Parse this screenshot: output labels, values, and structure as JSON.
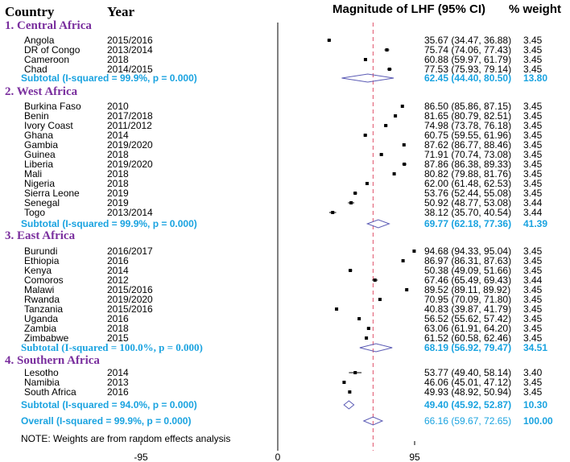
{
  "header": {
    "country": "Country",
    "year": "Year",
    "magnitude": "Magnitude of LHF (95% CI)",
    "weight": "% weight"
  },
  "note": "NOTE: Weights are from random effects analysis",
  "colors": {
    "region": "#7a2f9e",
    "subtotal": "#1aa3e0",
    "diamond": "#5b5bb5",
    "null_line": "#000000",
    "overall_line": "#e0526a"
  },
  "chart_data": {
    "type": "forest",
    "title": "Magnitude of LHF (95% CI)",
    "x_ticks": [
      -95,
      0,
      95
    ],
    "x_tick_labels": [
      "-95",
      "0",
      "95"
    ],
    "xlim": [
      -95,
      95
    ],
    "overall_line_value": 66.16,
    "rows": [
      {
        "kind": "region",
        "label": "1. Central Africa"
      },
      {
        "kind": "study",
        "country": "Angola",
        "year": "2015/2016",
        "est": 35.67,
        "lo": 34.47,
        "hi": 36.88,
        "ci_text": "35.67 (34.47, 36.88)",
        "weight": "3.45"
      },
      {
        "kind": "study",
        "country": "DR of Congo",
        "year": "2013/2014",
        "est": 75.74,
        "lo": 74.06,
        "hi": 77.43,
        "ci_text": "75.74 (74.06, 77.43)",
        "weight": "3.45"
      },
      {
        "kind": "study",
        "country": "Cameroon",
        "year": "2018",
        "est": 60.88,
        "lo": 59.97,
        "hi": 61.79,
        "ci_text": "60.88 (59.97, 61.79)",
        "weight": "3.45"
      },
      {
        "kind": "study",
        "country": "Chad",
        "year": "2014/2015",
        "est": 77.53,
        "lo": 75.93,
        "hi": 79.14,
        "ci_text": "77.53 (75.93, 79.14)",
        "weight": "3.45"
      },
      {
        "kind": "subtotal",
        "label": "Subtotal (I-squared = 99.9%, p = 0.000)",
        "font": "sans",
        "est": 62.45,
        "lo": 44.4,
        "hi": 80.5,
        "ci_text": "62.45 (44.40, 80.50)",
        "weight": "13.80"
      },
      {
        "kind": "region",
        "label": "2. West Africa"
      },
      {
        "kind": "study",
        "country": "Burkina Faso",
        "year": "2010",
        "est": 86.5,
        "lo": 85.86,
        "hi": 87.15,
        "ci_text": "86.50 (85.86, 87.15)",
        "weight": "3.45"
      },
      {
        "kind": "study",
        "country": "Benin",
        "year": "2017/2018",
        "est": 81.65,
        "lo": 80.79,
        "hi": 82.51,
        "ci_text": "81.65 (80.79, 82.51)",
        "weight": "3.45"
      },
      {
        "kind": "study",
        "country": "Ivory Coast",
        "year": "2011/2012",
        "est": 74.98,
        "lo": 73.78,
        "hi": 76.18,
        "ci_text": "74.98 (73.78, 76.18)",
        "weight": "3.45"
      },
      {
        "kind": "study",
        "country": "Ghana",
        "year": "2014",
        "est": 60.75,
        "lo": 59.55,
        "hi": 61.96,
        "ci_text": "60.75 (59.55, 61.96)",
        "weight": "3.45"
      },
      {
        "kind": "study",
        "country": "Gambia",
        "year": "2019/2020",
        "est": 87.62,
        "lo": 86.77,
        "hi": 88.46,
        "ci_text": "87.62 (86.77, 88.46)",
        "weight": "3.45"
      },
      {
        "kind": "study",
        "country": "Guinea",
        "year": "2018",
        "est": 71.91,
        "lo": 70.74,
        "hi": 73.08,
        "ci_text": "71.91 (70.74, 73.08)",
        "weight": "3.45"
      },
      {
        "kind": "study",
        "country": "Liberia",
        "year": "2019/2020",
        "est": 87.86,
        "lo": 86.38,
        "hi": 89.33,
        "ci_text": "87.86 (86.38, 89.33)",
        "weight": "3.45"
      },
      {
        "kind": "study",
        "country": "Mali",
        "year": "2018",
        "est": 80.82,
        "lo": 79.88,
        "hi": 81.76,
        "ci_text": "80.82 (79.88, 81.76)",
        "weight": "3.45"
      },
      {
        "kind": "study",
        "country": "Nigeria",
        "year": "2018",
        "est": 62.0,
        "lo": 61.48,
        "hi": 62.53,
        "ci_text": "62.00 (61.48, 62.53)",
        "weight": "3.45"
      },
      {
        "kind": "study",
        "country": "Sierra Leone",
        "year": "2019",
        "est": 53.76,
        "lo": 52.44,
        "hi": 55.08,
        "ci_text": "53.76 (52.44, 55.08)",
        "weight": "3.45"
      },
      {
        "kind": "study",
        "country": "Senegal",
        "year": "2019",
        "est": 50.92,
        "lo": 48.77,
        "hi": 53.08,
        "ci_text": "50.92 (48.77, 53.08)",
        "weight": "3.44"
      },
      {
        "kind": "study",
        "country": "Togo",
        "year": "2013/2014",
        "est": 38.12,
        "lo": 35.7,
        "hi": 40.54,
        "ci_text": "38.12 (35.70, 40.54)",
        "weight": "3.44"
      },
      {
        "kind": "subtotal",
        "label": "Subtotal (I-squared = 99.9%, p = 0.000)",
        "font": "sans",
        "est": 69.77,
        "lo": 62.18,
        "hi": 77.36,
        "ci_text": "69.77 (62.18, 77.36)",
        "weight": "41.39"
      },
      {
        "kind": "region",
        "label": "3. East Africa"
      },
      {
        "kind": "study",
        "country": "Burundi",
        "year": "2016/2017",
        "est": 94.68,
        "lo": 94.33,
        "hi": 95.04,
        "ci_text": "94.68 (94.33, 95.04)",
        "weight": "3.45"
      },
      {
        "kind": "study",
        "country": "Ethiopia",
        "year": "2016",
        "est": 86.97,
        "lo": 86.31,
        "hi": 87.63,
        "ci_text": "86.97 (86.31, 87.63)",
        "weight": "3.45"
      },
      {
        "kind": "study",
        "country": "Kenya",
        "year": "2014",
        "est": 50.38,
        "lo": 49.09,
        "hi": 51.66,
        "ci_text": "50.38 (49.09, 51.66)",
        "weight": "3.45"
      },
      {
        "kind": "study",
        "country": "Comoros",
        "year": "2012",
        "est": 67.46,
        "lo": 65.49,
        "hi": 69.43,
        "ci_text": "67.46 (65.49, 69.43)",
        "weight": "3.44"
      },
      {
        "kind": "study",
        "country": "Malawi",
        "year": "2015/2016",
        "est": 89.52,
        "lo": 89.11,
        "hi": 89.92,
        "ci_text": "89.52 (89.11, 89.92)",
        "weight": "3.45"
      },
      {
        "kind": "study",
        "country": "Rwanda",
        "year": "2019/2020",
        "est": 70.95,
        "lo": 70.09,
        "hi": 71.8,
        "ci_text": "70.95 (70.09, 71.80)",
        "weight": "3.45"
      },
      {
        "kind": "study",
        "country": "Tanzania",
        "year": "2015/2016",
        "est": 40.83,
        "lo": 39.87,
        "hi": 41.79,
        "ci_text": "40.83 (39.87, 41.79)",
        "weight": "3.45"
      },
      {
        "kind": "study",
        "country": "Uganda",
        "year": "2016",
        "est": 56.52,
        "lo": 55.62,
        "hi": 57.42,
        "ci_text": "56.52 (55.62, 57.42)",
        "weight": "3.45"
      },
      {
        "kind": "study",
        "country": "Zambia",
        "year": "2018",
        "est": 63.06,
        "lo": 61.91,
        "hi": 64.2,
        "ci_text": "63.06 (61.91, 64.20)",
        "weight": "3.45"
      },
      {
        "kind": "study",
        "country": "Zimbabwe",
        "year": "2015",
        "est": 61.52,
        "lo": 60.58,
        "hi": 62.46,
        "ci_text": "61.52 (60.58, 62.46)",
        "weight": "3.45"
      },
      {
        "kind": "subtotal",
        "label": "Subtotal (I-squared = 100.0%, p = 0.000)",
        "font": "serif",
        "est": 68.19,
        "lo": 56.92,
        "hi": 79.47,
        "ci_text": "68.19 (56.92, 79.47)",
        "weight": "34.51"
      },
      {
        "kind": "region",
        "label": "4. Southern Africa"
      },
      {
        "kind": "study",
        "country": "Lesotho",
        "year": "2014",
        "est": 53.77,
        "lo": 49.4,
        "hi": 58.14,
        "ci_text": "53.77 (49.40, 58.14)",
        "weight": "3.40"
      },
      {
        "kind": "study",
        "country": "Namibia",
        "year": "2013",
        "est": 46.06,
        "lo": 45.01,
        "hi": 47.12,
        "ci_text": "46.06 (45.01, 47.12)",
        "weight": "3.45"
      },
      {
        "kind": "study",
        "country": "South Africa",
        "year": "2016",
        "est": 49.93,
        "lo": 48.92,
        "hi": 50.94,
        "ci_text": "49.93 (48.92, 50.94)",
        "weight": "3.45"
      },
      {
        "kind": "subtotal",
        "label": "Subtotal (I-squared = 94.0%, p = 0.000)",
        "font": "sans",
        "est": 49.4,
        "lo": 45.92,
        "hi": 52.87,
        "ci_text": "49.40 (45.92, 52.87)",
        "weight": "10.30"
      },
      {
        "kind": "overall",
        "label": "Overall (I-squared = 99.9%, p = 0.000)",
        "est": 66.16,
        "lo": 59.67,
        "hi": 72.65,
        "ci_text": "66.16 (59.67, 72.65)",
        "weight": "100.00"
      }
    ]
  }
}
